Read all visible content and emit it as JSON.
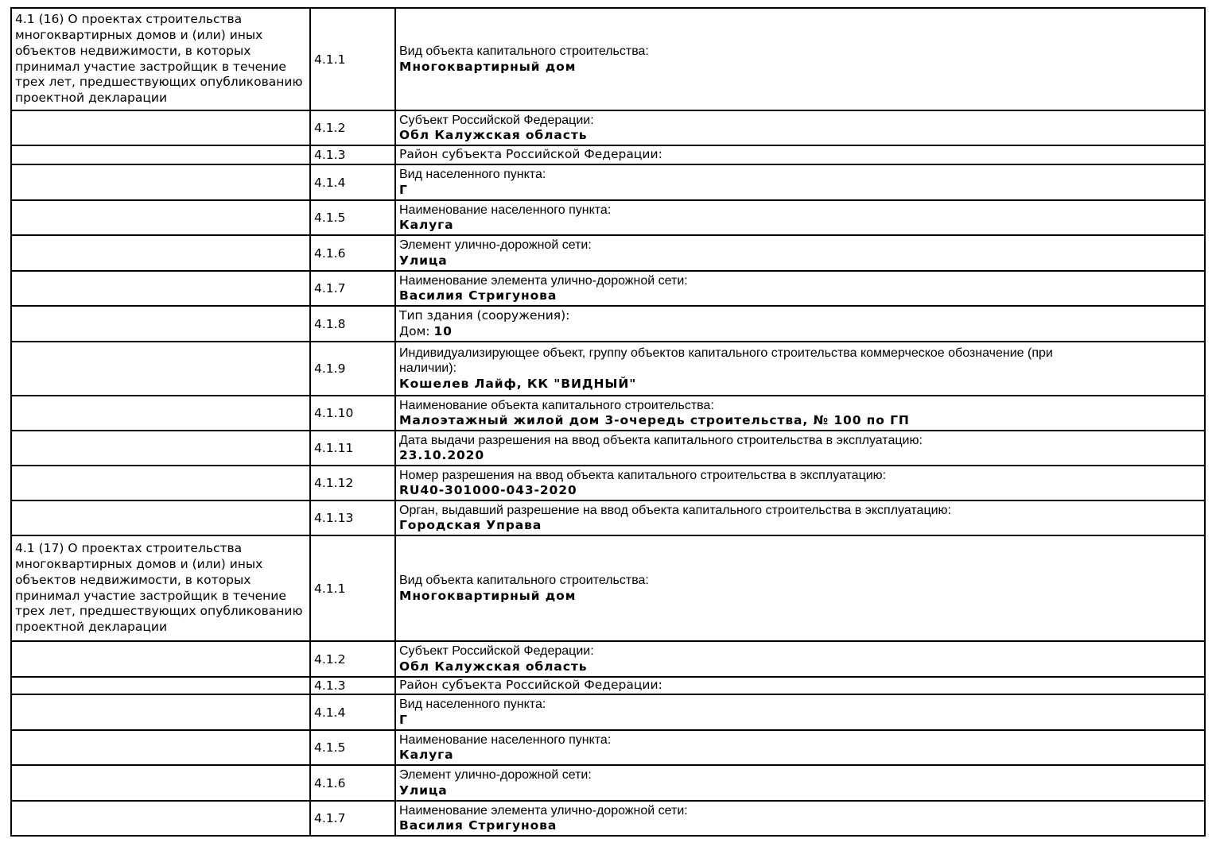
{
  "colors": {
    "text": "#000000",
    "border": "#000000",
    "background": "#ffffff"
  },
  "table": {
    "sections": [
      {
        "description": "4.1 (16) О проектах строительства многоквартирных домов и (или) иных объектов недвижимости, в которых принимал участие застройщик в течение трех лет, предшествующих опубликованию проектной декларации",
        "rows": [
          {
            "num": "4.1.1",
            "label": "Вид объекта капитального строительства:",
            "value": "Многоквартирный дом"
          },
          {
            "num": "4.1.2",
            "label": "Субъект Российской Федерации:",
            "value": "Обл Калужская область"
          },
          {
            "num": "4.1.3",
            "label": "Район субъекта Российской Федерации:",
            "value": ""
          },
          {
            "num": "4.1.4",
            "label": "Вид населенного пункта:",
            "value": "Г"
          },
          {
            "num": "4.1.5",
            "label": "Наименование населенного пункта:",
            "value": "Калуга"
          },
          {
            "num": "4.1.6",
            "label": "Элемент улично-дорожной сети:",
            "value": "Улица"
          },
          {
            "num": "4.1.7",
            "label": "Наименование элемента улично-дорожной сети:",
            "value": "Василия Стригунова"
          },
          {
            "num": "4.1.8",
            "label": "Тип здания (сооружения):",
            "value_prefix": "Дом: ",
            "value": "10"
          },
          {
            "num": "4.1.9",
            "label": "Индивидуализирующее объект, группу объектов капитального строительства коммерческое обозначение (при",
            "label2": "наличии):",
            "value": "Кошелев Лайф, КК \"ВИДНЫЙ\""
          },
          {
            "num": "4.1.10",
            "label": "Наименование объекта капитального строительства:",
            "value": "Малоэтажный жилой дом 3-очередь строительства, № 100 по ГП"
          },
          {
            "num": "4.1.11",
            "label": "Дата выдачи разрешения на ввод объекта капитального строительства в эксплуатацию:",
            "value": "23.10.2020"
          },
          {
            "num": "4.1.12",
            "label": "Номер разрешения на ввод объекта капитального строительства в эксплуатацию:",
            "value": "RU40-301000-043-2020"
          },
          {
            "num": "4.1.13",
            "label": "Орган, выдавший разрешение на ввод объекта капитального строительства в эксплуатацию:",
            "value": "Городская Управа"
          }
        ]
      },
      {
        "description": "4.1 (17) О проектах строительства многоквартирных домов и (или) иных объектов недвижимости, в которых принимал участие застройщик в течение трех лет, предшествующих опубликованию проектной декларации",
        "rows": [
          {
            "num": "4.1.1",
            "label": "Вид объекта капитального строительства:",
            "value": "Многоквартирный дом"
          },
          {
            "num": "4.1.2",
            "label": "Субъект Российской Федерации:",
            "value": "Обл Калужская область"
          },
          {
            "num": "4.1.3",
            "label": "Район субъекта Российской Федерации:",
            "value": ""
          },
          {
            "num": "4.1.4",
            "label": "Вид населенного пункта:",
            "value": "Г"
          },
          {
            "num": "4.1.5",
            "label": "Наименование населенного пункта:",
            "value": "Калуга"
          },
          {
            "num": "4.1.6",
            "label": "Элемент улично-дорожной сети:",
            "value": "Улица"
          },
          {
            "num": "4.1.7",
            "label": "Наименование элемента улично-дорожной сети:",
            "value": "Василия Стригунова"
          }
        ]
      }
    ]
  }
}
